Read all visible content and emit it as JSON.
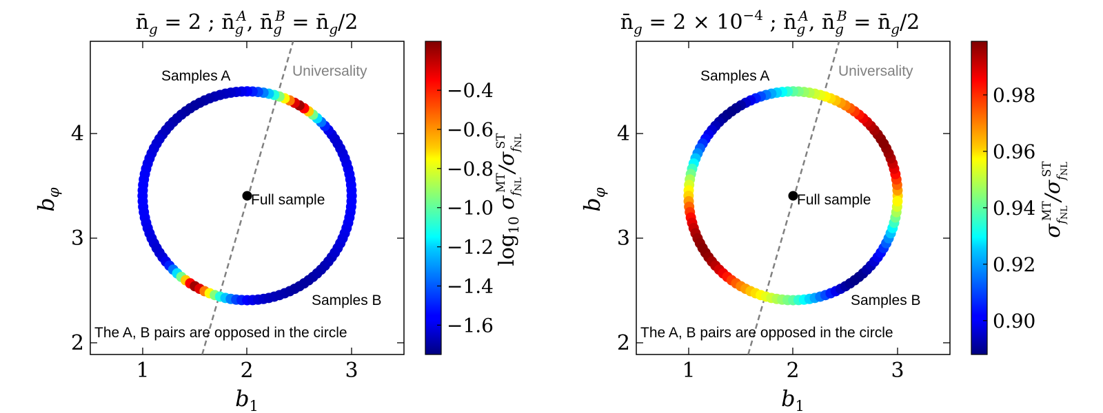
{
  "panels": [
    {
      "title": "n̄_g = 2 ; n̄_g^A, n̄_g^B = n̄_g/2",
      "xlabel": "b_1",
      "ylabel": "b_φ",
      "colorbar_label": "log_10 σ_fNL^MT / σ_fNL^ST",
      "annotations": {
        "samples_a": "Samples A",
        "samples_b": "Samples B",
        "full_sample": "Full sample",
        "universality": "Universality",
        "note": "The A, B pairs are opposed in the circle"
      }
    },
    {
      "title": "n̄_g = 2 × 10^−4 ; n̄_g^A, n̄_g^B = n̄_g/2",
      "xlabel": "b_1",
      "ylabel": "b_φ",
      "colorbar_label": "σ_fNL^MT / σ_fNL^ST",
      "annotations": {
        "samples_a": "Samples A",
        "samples_b": "Samples B",
        "full_sample": "Full sample",
        "universality": "Universality",
        "note": "The A, B pairs are opposed in the circle"
      }
    }
  ],
  "chart_data": [
    {
      "type": "scatter",
      "title": "n̄_g = 2 ; n̄_g^A, n̄_g^B = n̄_g/2",
      "xlabel": "b_1",
      "ylabel": "b_φ",
      "xlim": [
        0.5,
        3.5
      ],
      "ylim": [
        1.85,
        4.85
      ],
      "x_ticks": [
        1,
        2,
        3
      ],
      "y_ticks": [
        2,
        3,
        4
      ],
      "grid": false,
      "colormap": "jet",
      "colorbar": {
        "label": "log_10 σ_fNL^MT / σ_fNL^ST",
        "min": -1.75,
        "max": -0.15,
        "ticks": [
          -1.6,
          -1.4,
          -1.2,
          -1.0,
          -0.8,
          -0.6,
          -0.4
        ],
        "tick_labels": [
          "−1.6",
          "−1.4",
          "−1.2",
          "−1.0",
          "−0.8",
          "−0.6",
          "−0.4"
        ]
      },
      "circle": {
        "center": [
          2.0,
          3.37
        ],
        "radius": 1.0
      },
      "full_sample_point": {
        "x": 2.0,
        "y": 3.37,
        "label": "Full sample"
      },
      "universality_line": {
        "label": "Universality",
        "x1": 1.57,
        "y1": 1.85,
        "x2": 2.44,
        "y2": 4.85
      },
      "series_angle_deg": [
        0,
        3,
        6,
        9,
        12,
        15,
        18,
        21,
        24,
        27,
        30,
        33,
        36,
        39,
        42,
        45,
        48,
        51,
        54,
        57,
        60,
        63,
        66,
        69,
        72,
        75,
        78,
        81,
        84,
        87,
        90,
        93,
        96,
        99,
        102,
        105,
        108,
        111,
        114,
        117,
        120,
        123,
        126,
        129,
        132,
        135,
        138,
        141,
        144,
        147,
        150,
        153,
        156,
        159,
        162,
        165,
        168,
        171,
        174,
        177,
        180,
        183,
        186,
        189,
        192,
        195,
        198,
        201,
        204,
        207,
        210,
        213,
        216,
        219,
        222,
        225,
        228,
        231,
        234,
        237,
        240,
        243,
        246,
        249,
        252,
        255,
        258,
        261,
        264,
        267,
        270,
        273,
        276,
        279,
        282,
        285,
        288,
        291,
        294,
        297,
        300,
        303,
        306,
        309,
        312,
        315,
        318,
        321,
        324,
        327,
        330,
        333,
        336,
        339,
        342,
        345,
        348,
        351,
        354,
        357
      ],
      "series_value": [
        -1.55,
        -1.55,
        -1.55,
        -1.56,
        -1.56,
        -1.57,
        -1.58,
        -1.59,
        -1.6,
        -1.61,
        -1.62,
        -1.62,
        -1.61,
        -1.58,
        -1.5,
        -1.37,
        -1.2,
        -0.97,
        -0.67,
        -0.35,
        -0.2,
        -0.3,
        -0.54,
        -0.74,
        -0.94,
        -1.1,
        -1.24,
        -1.35,
        -1.44,
        -1.5,
        -1.55,
        -1.58,
        -1.61,
        -1.63,
        -1.65,
        -1.66,
        -1.67,
        -1.68,
        -1.69,
        -1.7,
        -1.7,
        -1.7,
        -1.7,
        -1.69,
        -1.68,
        -1.68,
        -1.67,
        -1.66,
        -1.65,
        -1.63,
        -1.62,
        -1.61,
        -1.6,
        -1.59,
        -1.58,
        -1.57,
        -1.56,
        -1.56,
        -1.55,
        -1.55,
        -1.55,
        -1.55,
        -1.55,
        -1.56,
        -1.56,
        -1.57,
        -1.58,
        -1.59,
        -1.6,
        -1.61,
        -1.62,
        -1.62,
        -1.61,
        -1.58,
        -1.5,
        -1.37,
        -1.2,
        -0.97,
        -0.67,
        -0.35,
        -0.2,
        -0.3,
        -0.54,
        -0.74,
        -0.94,
        -1.1,
        -1.24,
        -1.35,
        -1.44,
        -1.5,
        -1.55,
        -1.58,
        -1.61,
        -1.63,
        -1.65,
        -1.66,
        -1.67,
        -1.68,
        -1.69,
        -1.7,
        -1.7,
        -1.7,
        -1.7,
        -1.69,
        -1.68,
        -1.68,
        -1.67,
        -1.66,
        -1.65,
        -1.63,
        -1.62,
        -1.61,
        -1.6,
        -1.59,
        -1.58,
        -1.57,
        -1.56,
        -1.56,
        -1.55,
        -1.55
      ]
    },
    {
      "type": "scatter",
      "title": "n̄_g = 2 × 10^−4 ; n̄_g^A, n̄_g^B = n̄_g/2",
      "xlabel": "b_1",
      "ylabel": "b_φ",
      "xlim": [
        0.5,
        3.5
      ],
      "ylim": [
        1.85,
        4.85
      ],
      "x_ticks": [
        1,
        2,
        3
      ],
      "y_ticks": [
        2,
        3,
        4
      ],
      "grid": false,
      "colormap": "jet",
      "colorbar": {
        "label": "σ_fNL^MT / σ_fNL^ST",
        "min": 0.888,
        "max": 0.999,
        "ticks": [
          0.9,
          0.92,
          0.94,
          0.96,
          0.98
        ],
        "tick_labels": [
          "0.90",
          "0.92",
          "0.94",
          "0.96",
          "0.98"
        ]
      },
      "circle": {
        "center": [
          2.0,
          3.37
        ],
        "radius": 1.0
      },
      "full_sample_point": {
        "x": 2.0,
        "y": 3.37,
        "label": "Full sample"
      },
      "universality_line": {
        "label": "Universality",
        "x1": 1.57,
        "y1": 1.85,
        "x2": 2.44,
        "y2": 4.85
      },
      "series_angle_deg": [
        0,
        3,
        6,
        9,
        12,
        15,
        18,
        21,
        24,
        27,
        30,
        33,
        36,
        39,
        42,
        45,
        48,
        51,
        54,
        57,
        60,
        63,
        66,
        69,
        72,
        75,
        78,
        81,
        84,
        87,
        90,
        93,
        96,
        99,
        102,
        105,
        108,
        111,
        114,
        117,
        120,
        123,
        126,
        129,
        132,
        135,
        138,
        141,
        144,
        147,
        150,
        153,
        156,
        159,
        162,
        165,
        168,
        171,
        174,
        177,
        180,
        183,
        186,
        189,
        192,
        195,
        198,
        201,
        204,
        207,
        210,
        213,
        216,
        219,
        222,
        225,
        228,
        231,
        234,
        237,
        240,
        243,
        246,
        249,
        252,
        255,
        258,
        261,
        264,
        267,
        270,
        273,
        276,
        279,
        282,
        285,
        288,
        291,
        294,
        297,
        300,
        303,
        306,
        309,
        312,
        315,
        318,
        321,
        324,
        327,
        330,
        333,
        336,
        339,
        342,
        345,
        348,
        351,
        354,
        357
      ],
      "series_value": [
        0.962,
        0.968,
        0.974,
        0.979,
        0.984,
        0.988,
        0.991,
        0.994,
        0.996,
        0.997,
        0.998,
        0.998,
        0.997,
        0.995,
        0.993,
        0.99,
        0.987,
        0.983,
        0.979,
        0.975,
        0.971,
        0.968,
        0.964,
        0.961,
        0.958,
        0.955,
        0.952,
        0.949,
        0.946,
        0.943,
        0.94,
        0.935,
        0.93,
        0.925,
        0.92,
        0.915,
        0.91,
        0.905,
        0.9,
        0.896,
        0.892,
        0.89,
        0.889,
        0.889,
        0.89,
        0.892,
        0.894,
        0.897,
        0.9,
        0.903,
        0.907,
        0.912,
        0.917,
        0.923,
        0.929,
        0.936,
        0.942,
        0.948,
        0.953,
        0.958,
        0.962,
        0.968,
        0.974,
        0.979,
        0.984,
        0.988,
        0.991,
        0.994,
        0.996,
        0.997,
        0.998,
        0.998,
        0.997,
        0.995,
        0.993,
        0.99,
        0.987,
        0.983,
        0.979,
        0.975,
        0.971,
        0.968,
        0.964,
        0.961,
        0.958,
        0.955,
        0.952,
        0.949,
        0.946,
        0.943,
        0.94,
        0.935,
        0.93,
        0.925,
        0.92,
        0.915,
        0.91,
        0.905,
        0.9,
        0.896,
        0.892,
        0.89,
        0.889,
        0.889,
        0.89,
        0.892,
        0.894,
        0.897,
        0.9,
        0.903,
        0.907,
        0.912,
        0.917,
        0.923,
        0.929,
        0.936,
        0.942,
        0.948,
        0.953,
        0.958
      ]
    }
  ]
}
